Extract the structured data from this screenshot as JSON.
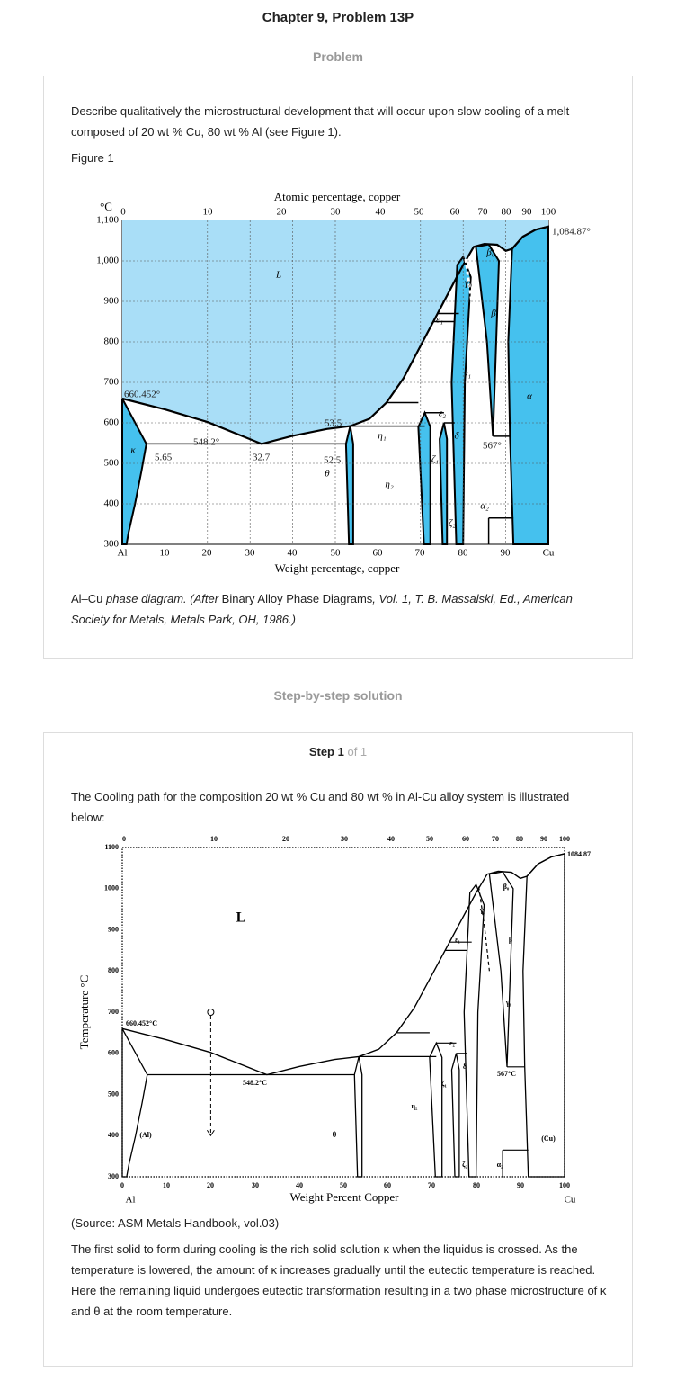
{
  "header": {
    "title": "Chapter 9, Problem 13P"
  },
  "problem": {
    "heading": "Problem",
    "text": "Describe qualitatively the microstructural development that will occur upon slow cooling of a melt composed of 20 wt % Cu, 80 wt % Al (see Figure 1).",
    "figure_label": "Figure 1",
    "caption": [
      "Al–Cu ",
      "phase diagram. (After ",
      "Binary Alloy Phase Diagrams",
      ", Vol. 1, T. B. Massalski, Ed., American Society for Metals, Metals Park, OH, 1986.)"
    ]
  },
  "figure1": {
    "y_unit": "°C",
    "top_axis_label": "Atomic percentage, copper",
    "bottom_axis_label": "Weight percentage, copper",
    "top_ticks": [
      "0",
      "10",
      "20",
      "30",
      "40",
      "50",
      "60",
      "70",
      "80",
      "90",
      "100"
    ],
    "bottom_ticks": [
      "Al",
      "10",
      "20",
      "30",
      "40",
      "50",
      "60",
      "70",
      "80",
      "90",
      "Cu"
    ],
    "y_ticks": [
      "1,100",
      "1,000",
      "900",
      "800",
      "700",
      "600",
      "500",
      "400",
      "300"
    ],
    "annotations": [
      "1,084.87°",
      "660.452°",
      "548.2°",
      "5.65",
      "32.7",
      "53.5",
      "52.5",
      "567°"
    ],
    "phases": [
      "L",
      "κ",
      "θ",
      "η₁",
      "η₂",
      "ε₁",
      "ε₂",
      "γ₀",
      "γ₁",
      "β₀",
      "β",
      "α",
      "ζ₁",
      "ζ₂",
      "α₂",
      "δ"
    ]
  },
  "solution": {
    "heading": "Step-by-step solution",
    "step": "Step 1",
    "step_of": "of 1",
    "intro": "The Cooling path for the composition 20 wt % Cu and 80 wt % in Al-Cu alloy system is illustrated below:",
    "source": "(Source: ASM Metals Handbook, vol.03)",
    "conclusion": "The first solid to form during cooling is the rich solid solution κ when the liquidus is crossed. As the temperature is lowered, the amount of κ increases gradually until the eutectic temperature is reached. Here the remaining liquid undergoes eutectic transformation resulting in a two phase microstructure of κ and θ at the room temperature."
  },
  "figure2": {
    "y_axis_label": "Temperature °C",
    "x_axis_label": "Weight Percent Copper",
    "top_ticks": [
      "0",
      "10",
      "20",
      "30",
      "40",
      "50",
      "60",
      "70",
      "80",
      "90",
      "100"
    ],
    "bottom_ticks": [
      "0",
      "10",
      "20",
      "30",
      "40",
      "50",
      "60",
      "70",
      "80",
      "90",
      "100"
    ],
    "y_ticks": [
      "1100",
      "1000",
      "900",
      "800",
      "700",
      "600",
      "500",
      "400",
      "300"
    ],
    "end_labels": [
      "Al",
      "Cu"
    ],
    "annotations": [
      "1084.87",
      "660.452°C",
      "548.2°C",
      "567°C"
    ],
    "phases": [
      "L",
      "(Al)",
      "(Cu)",
      "θ",
      "η₂",
      "ε₂",
      "γ₁",
      "β",
      "β₀",
      "γ₀",
      "ε₁",
      "ζ₁",
      "δ",
      "ζ₂",
      "α₂"
    ]
  }
}
